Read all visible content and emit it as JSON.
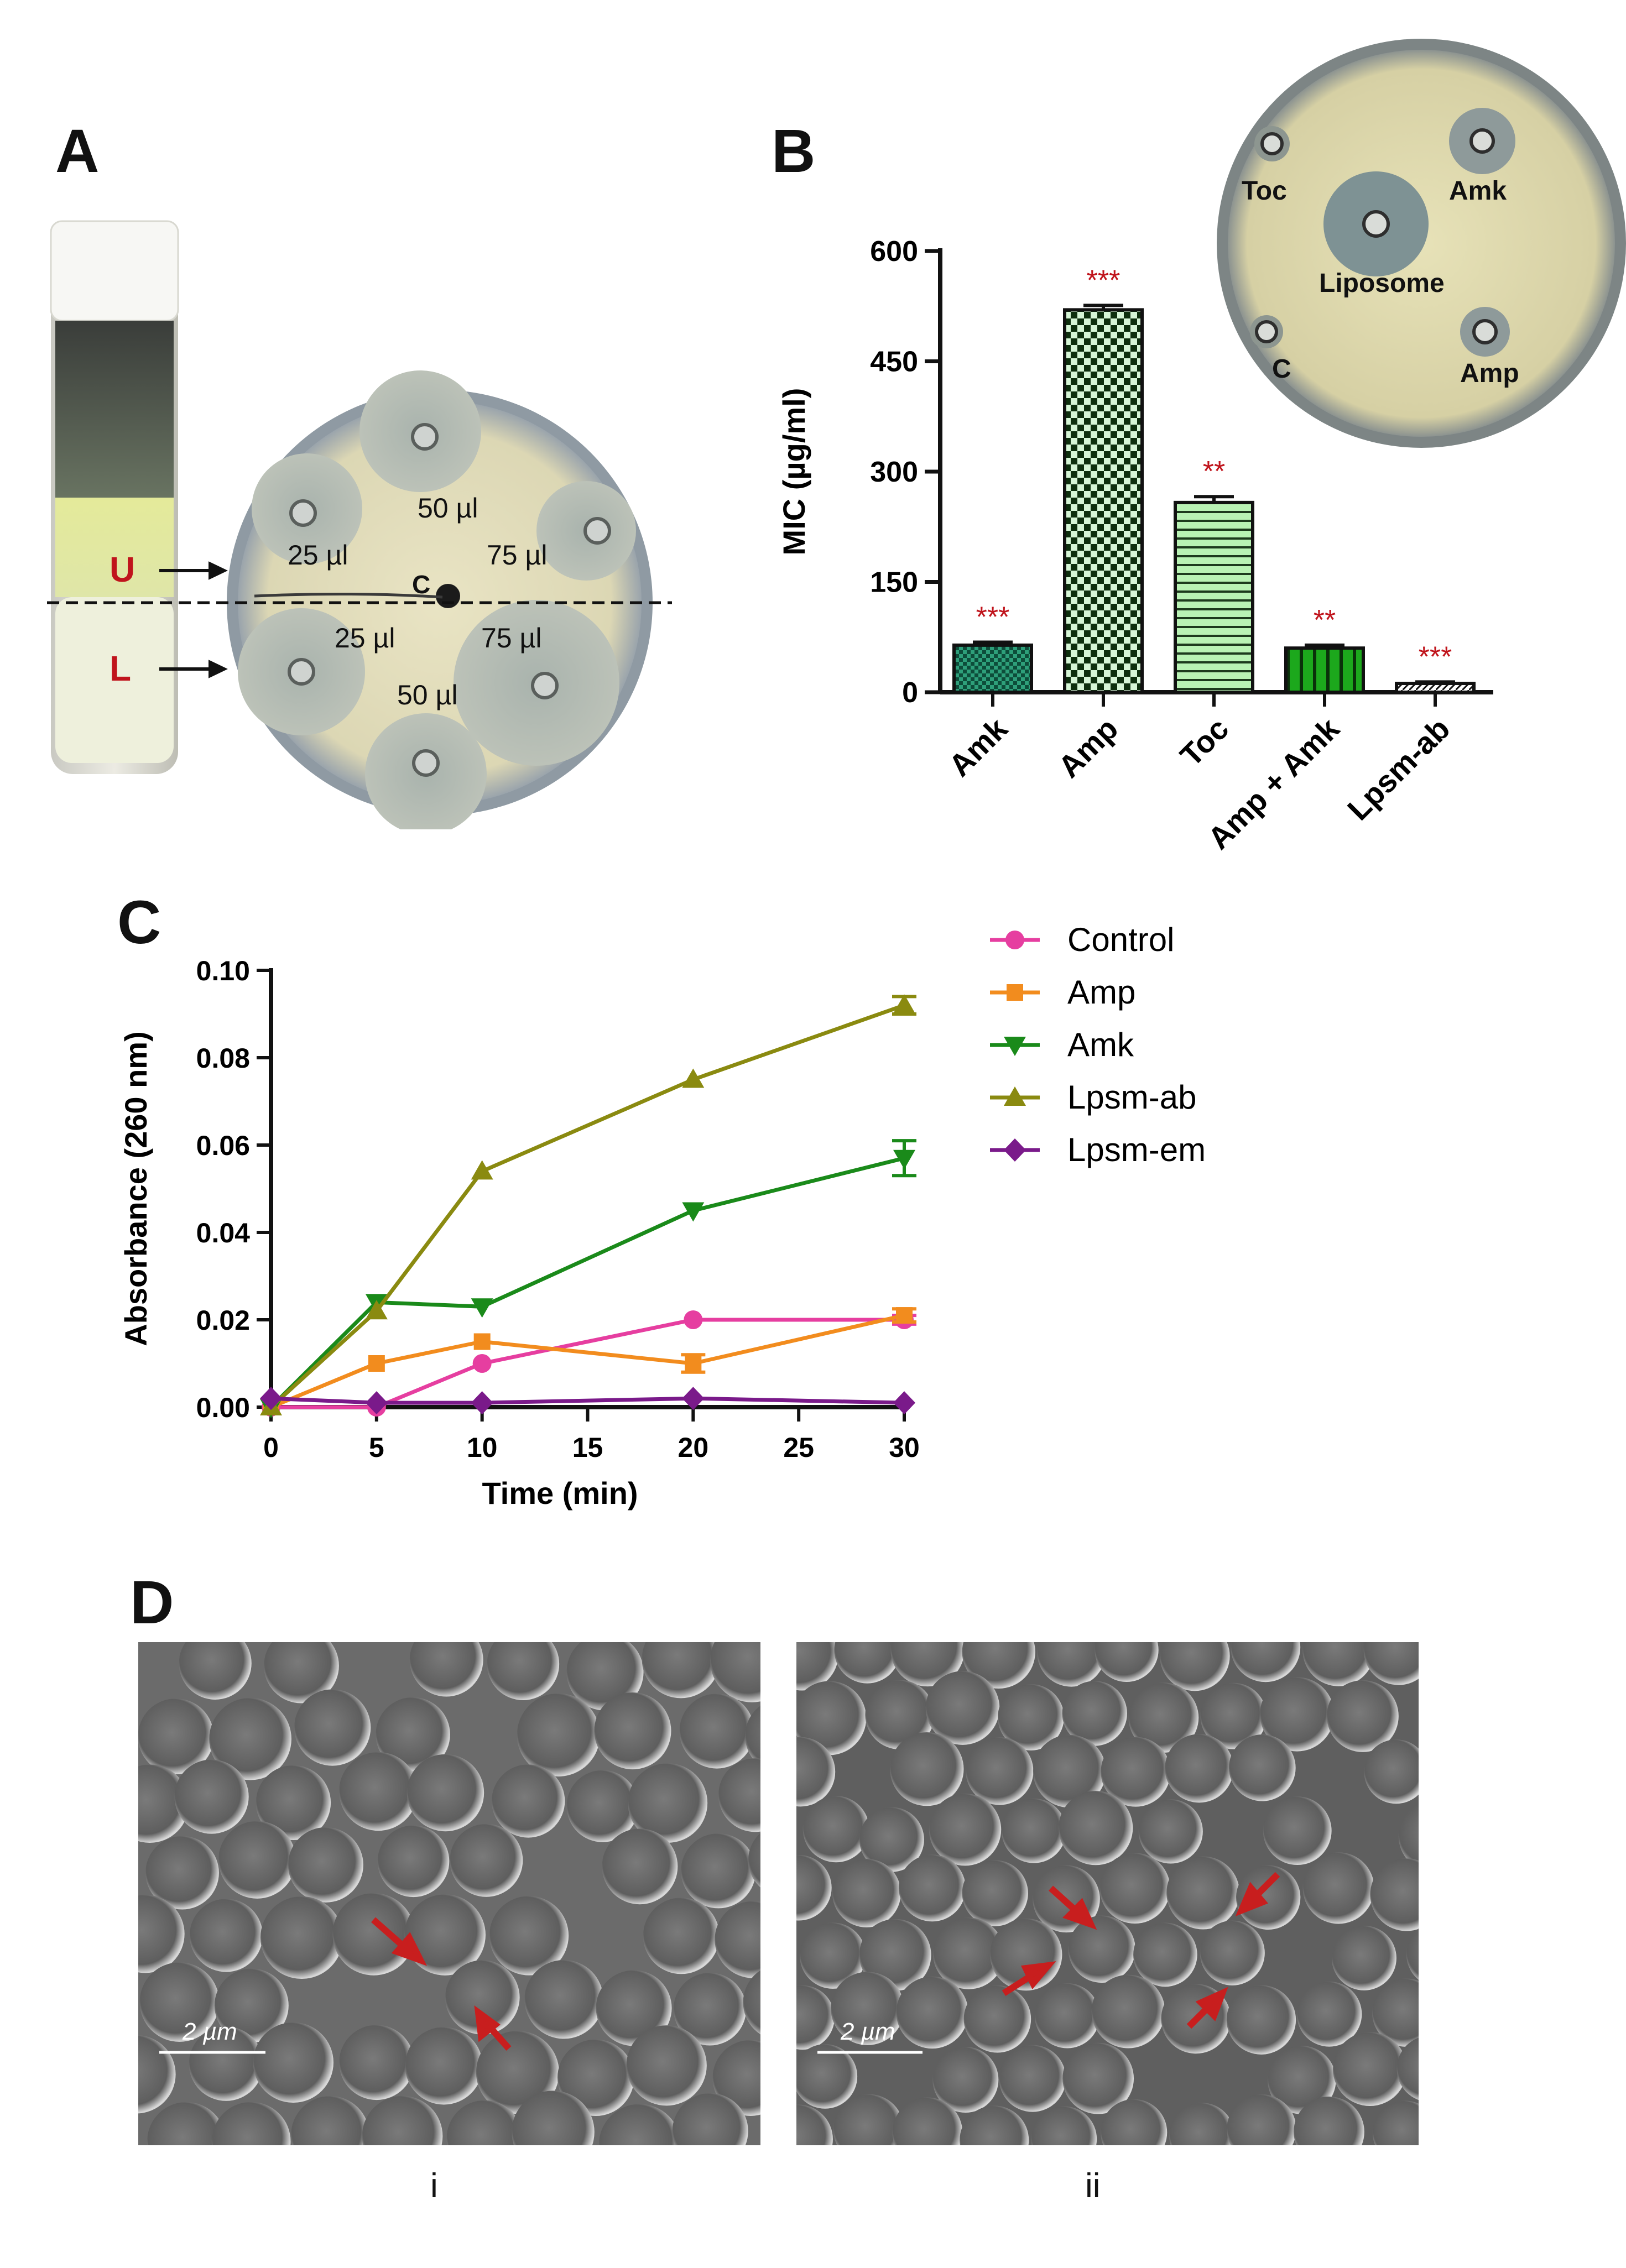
{
  "panels": {
    "a": {
      "letter": "A"
    },
    "b": {
      "letter": "B"
    },
    "c": {
      "letter": "C"
    },
    "d": {
      "letter": "D"
    }
  },
  "panel_a": {
    "vial_labels": [
      "U",
      "L"
    ],
    "plate_labels": {
      "upper": [
        "25 µl",
        "50 µl",
        "75 µl"
      ],
      "lower": [
        "25 µl",
        "50 µl",
        "75 µl"
      ],
      "center": "C"
    }
  },
  "panel_b_inset": {
    "labels": [
      "Toc",
      "Amk",
      "Liposome",
      "C",
      "Amp"
    ]
  },
  "panel_d": {
    "captions": [
      "i",
      "ii"
    ],
    "scale_bar": "2 µm"
  },
  "colors": {
    "red_label": "#c0141c",
    "control": "#e63ea0",
    "amp": "#f28c1e",
    "amk": "#1a8a1a",
    "lpsm_ab": "#8a8a10",
    "lpsm_em": "#7a1a8a"
  },
  "chart_data": [
    {
      "type": "bar",
      "ylabel": "MIC (µg/ml)",
      "ylim": [
        0,
        600
      ],
      "yticks": [
        "0",
        "150",
        "300",
        "450",
        "600"
      ],
      "categories": [
        "Amk",
        "Amp",
        "Toc",
        "Amp + Amk",
        "Lpsm-ab"
      ],
      "values": [
        64,
        520,
        258,
        60,
        12
      ],
      "errors": [
        4,
        6,
        8,
        4,
        2
      ],
      "significance": [
        "***",
        "***",
        "**",
        "**",
        "***"
      ]
    },
    {
      "type": "line",
      "xlabel": "Time (min)",
      "ylabel": "Absorbance (260 nm)",
      "xlim": [
        0,
        30
      ],
      "ylim": [
        0,
        0.1
      ],
      "xticks": [
        "0",
        "5",
        "10",
        "15",
        "20",
        "25",
        "30"
      ],
      "yticks": [
        "0.00",
        "0.02",
        "0.04",
        "0.06",
        "0.08",
        "0.10"
      ],
      "x": [
        0,
        5,
        10,
        20,
        30
      ],
      "series": [
        {
          "name": "Control",
          "marker": "circle",
          "values": [
            0,
            0,
            0.01,
            0.02,
            0.02
          ],
          "err": [
            0,
            0,
            0,
            0,
            0.001
          ]
        },
        {
          "name": "Amp",
          "marker": "square",
          "values": [
            0,
            0.01,
            0.015,
            0.01,
            0.021
          ],
          "err": [
            0,
            0,
            0,
            0.002,
            0.0015
          ]
        },
        {
          "name": "Amk",
          "marker": "triangle-down",
          "values": [
            0,
            0.024,
            0.023,
            0.045,
            0.057
          ],
          "err": [
            0,
            0,
            0,
            0,
            0.004
          ]
        },
        {
          "name": "Lpsm-ab",
          "marker": "triangle-up",
          "values": [
            0,
            0.022,
            0.054,
            0.075,
            0.092
          ],
          "err": [
            0,
            0,
            0,
            0,
            0.002
          ]
        },
        {
          "name": "Lpsm-em",
          "marker": "diamond",
          "values": [
            0.002,
            0.001,
            0.001,
            0.002,
            0.001
          ],
          "err": [
            0,
            0,
            0,
            0,
            0
          ]
        }
      ]
    }
  ]
}
